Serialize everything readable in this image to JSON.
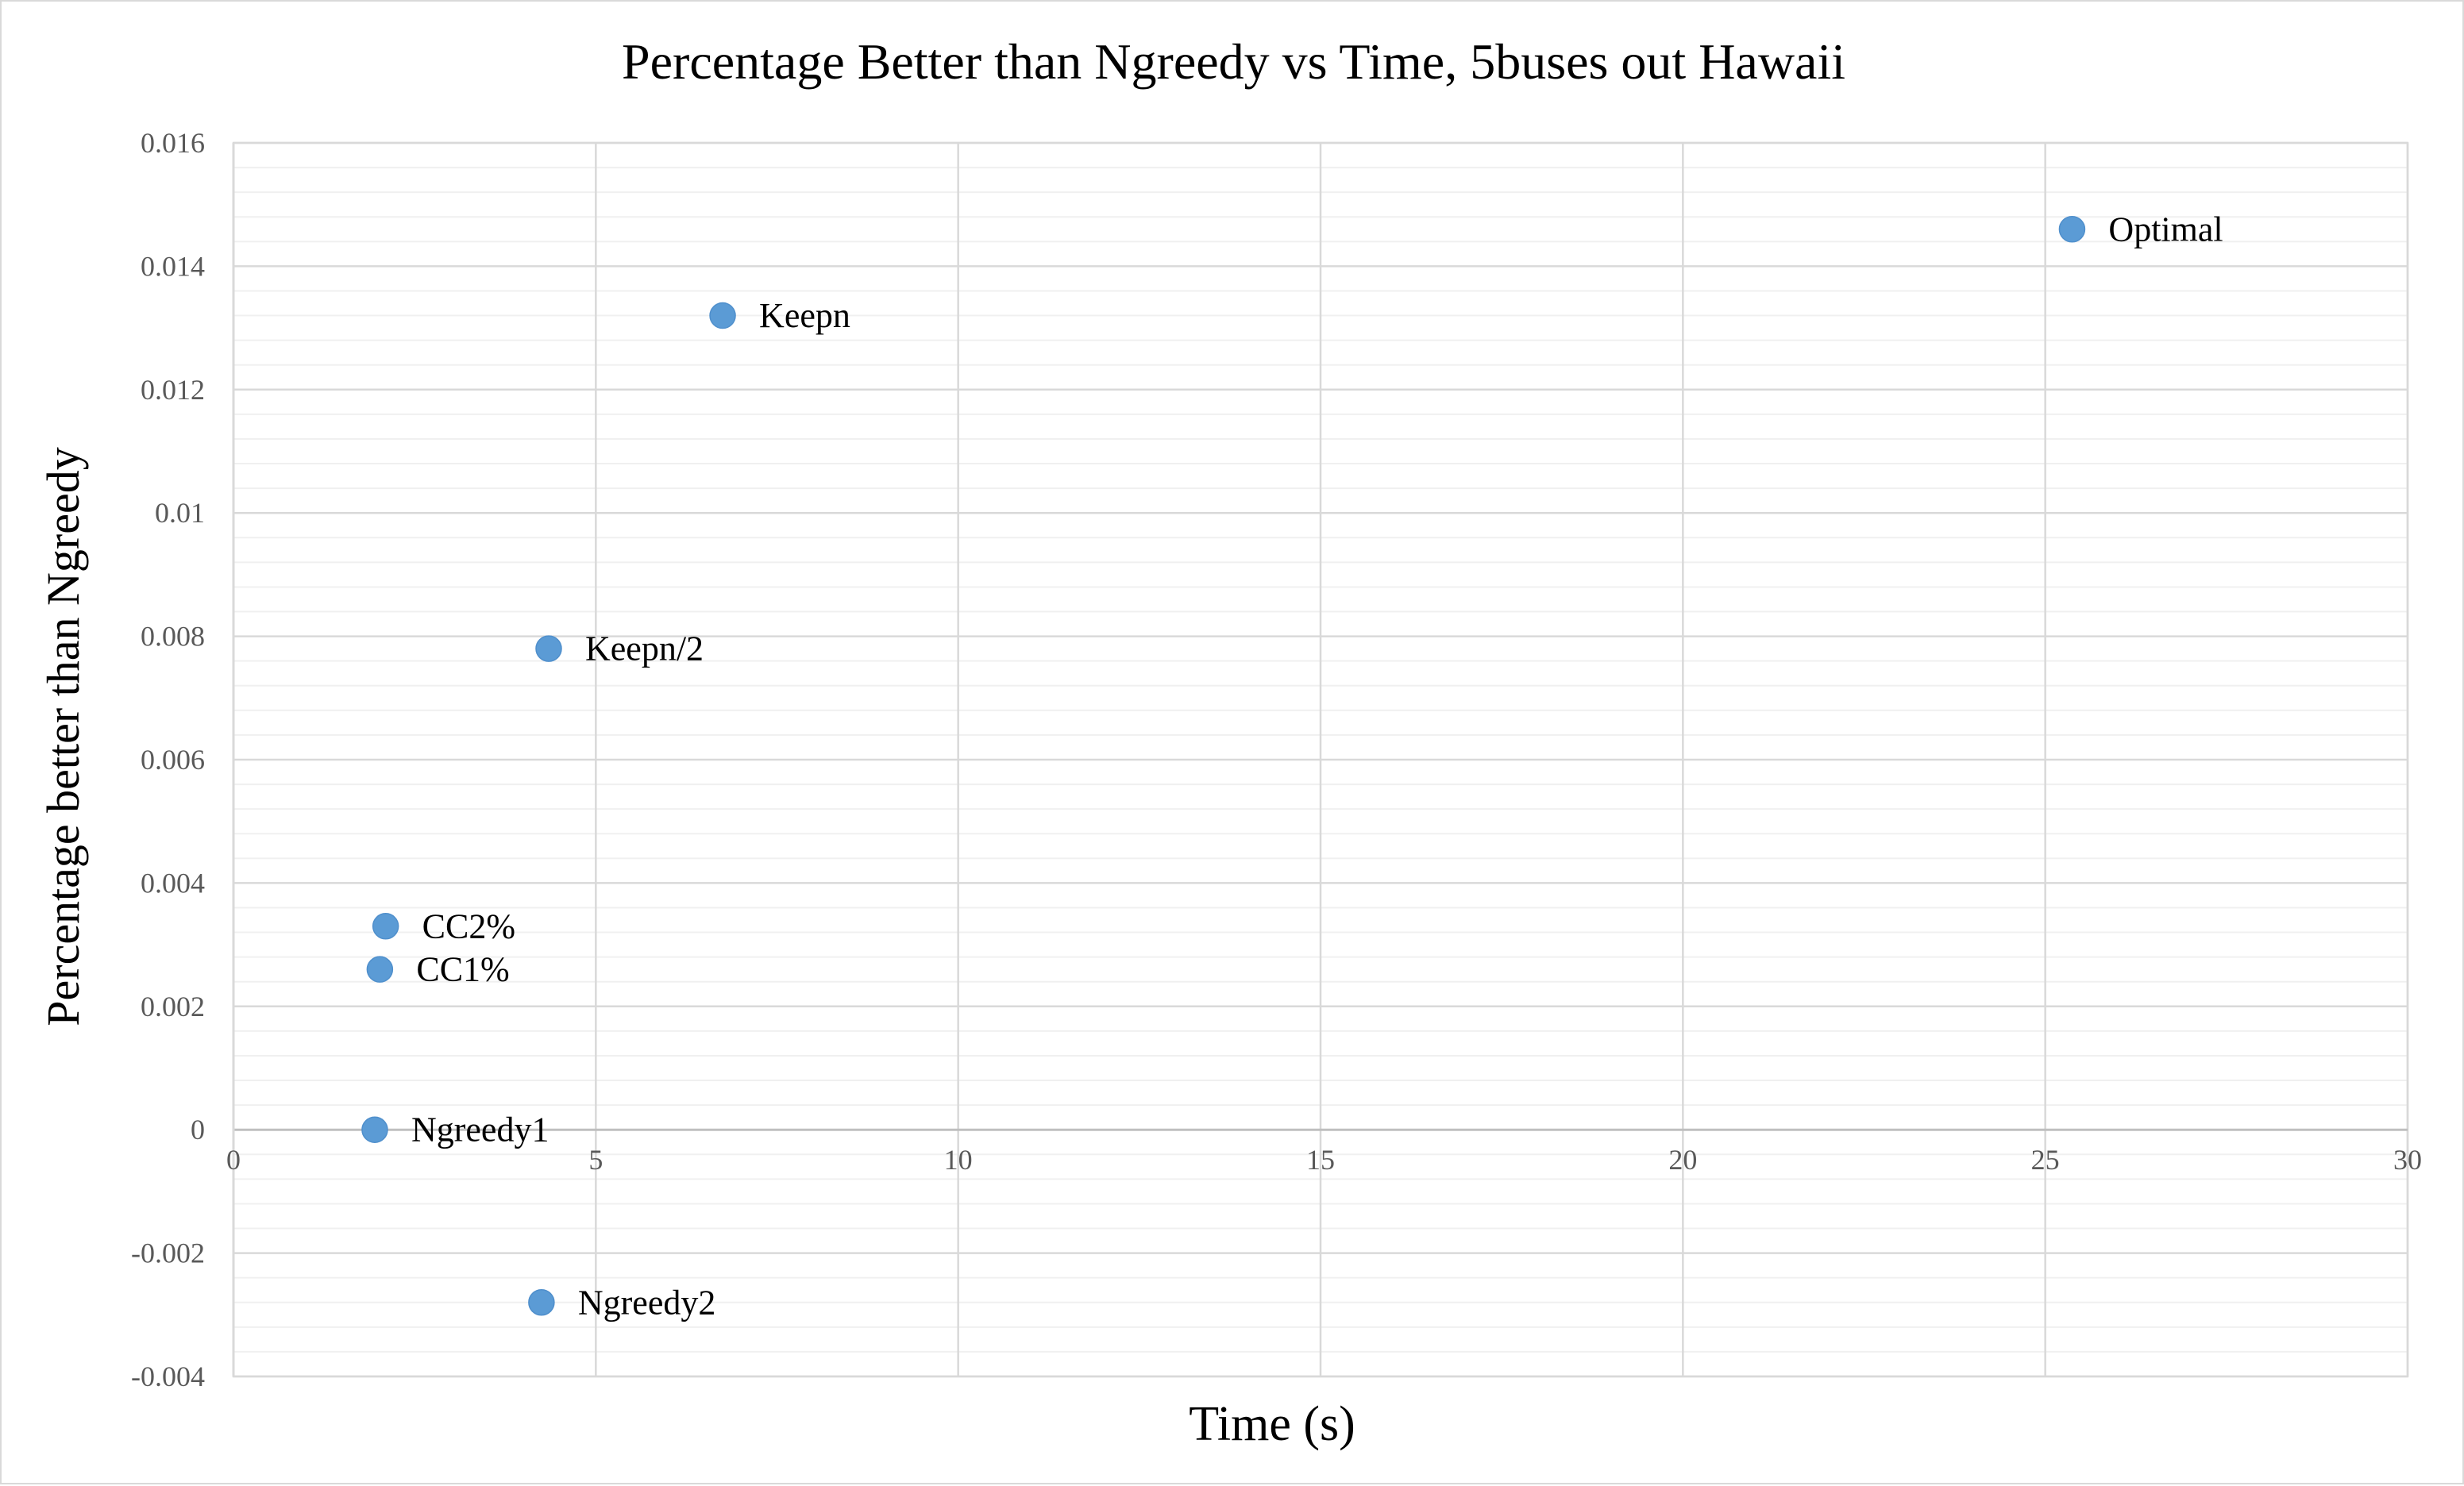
{
  "chart_data": {
    "type": "scatter",
    "title": "Percentage Better than Ngreedy vs Time, 5buses out Hawaii",
    "xlabel": "Time (s)",
    "ylabel": "Percentage better than Ngreedy",
    "xlim": [
      0,
      30
    ],
    "ylim": [
      -0.004,
      0.016
    ],
    "x_ticks": [
      0,
      5,
      10,
      15,
      20,
      25,
      30
    ],
    "x_tick_labels": [
      "0",
      "5",
      "10",
      "15",
      "20",
      "25",
      "30"
    ],
    "y_ticks": [
      0.016,
      0.014,
      0.012,
      0.01,
      0.008,
      0.006,
      0.004,
      0.002,
      0,
      -0.002,
      -0.004
    ],
    "y_tick_labels": [
      "0.016",
      "0.014",
      "0.012",
      "0.01",
      "0.008",
      "0.006",
      "0.004",
      "0.002",
      "0",
      "-0.002",
      "-0.004"
    ],
    "grid": true,
    "legend": "none",
    "marker_color": "#5b9bd5",
    "points": [
      {
        "label": "Optimal",
        "x": 25.37,
        "y": 0.0146
      },
      {
        "label": "Keepn",
        "x": 6.75,
        "y": 0.0132
      },
      {
        "label": "Keepn/2",
        "x": 4.35,
        "y": 0.0078
      },
      {
        "label": "CC2%",
        "x": 2.1,
        "y": 0.0033
      },
      {
        "label": "CC1%",
        "x": 2.02,
        "y": 0.0026
      },
      {
        "label": "Ngreedy1",
        "x": 1.95,
        "y": 0.0
      },
      {
        "label": "Ngreedy2",
        "x": 4.25,
        "y": -0.0028
      }
    ]
  }
}
